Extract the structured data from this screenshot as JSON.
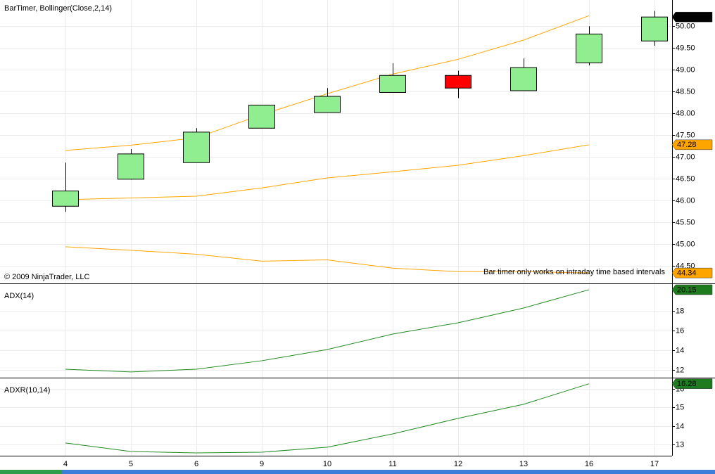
{
  "chart_data": [
    {
      "type": "candlestick",
      "title": "BarTimer, Bollinger(Close,2,14)",
      "annotations": [
        "© 2009 NinjaTrader, LLC",
        "Bar timer only works on intraday time based intervals"
      ],
      "categories": [
        "4",
        "5",
        "6",
        "9",
        "10",
        "11",
        "12",
        "13",
        "16",
        "17"
      ],
      "open": [
        45.87,
        46.49,
        46.87,
        47.66,
        48.02,
        48.48,
        48.87,
        48.52,
        49.16,
        49.66
      ],
      "high": [
        46.87,
        47.18,
        47.66,
        48.19,
        48.58,
        49.15,
        48.98,
        49.26,
        50.0,
        50.35
      ],
      "low": [
        45.74,
        46.48,
        46.87,
        47.66,
        48.02,
        48.48,
        48.35,
        48.52,
        49.1,
        49.55
      ],
      "close": [
        46.22,
        47.07,
        47.57,
        48.19,
        48.39,
        48.87,
        48.58,
        49.05,
        49.82,
        50.21
      ],
      "up_color": "#90ee90",
      "down_color": "#ff0000",
      "series": [
        {
          "color": "#ffa500",
          "values": [
            47.15,
            47.27,
            47.44,
            47.97,
            48.45,
            48.9,
            49.24,
            49.68,
            50.24,
            null
          ],
          "label_last": false
        },
        {
          "color": "#ffa500",
          "values": [
            46.02,
            46.06,
            46.1,
            46.29,
            46.52,
            46.66,
            46.81,
            47.03,
            47.28,
            null
          ],
          "label_last": true
        },
        {
          "color": "#ffa500",
          "values": [
            44.94,
            44.86,
            44.77,
            44.61,
            44.64,
            44.45,
            44.37,
            44.37,
            44.34,
            null
          ],
          "label_last": true
        }
      ],
      "ylim": [
        44.1,
        50.6
      ],
      "yticks": [
        {
          "value": 44.5,
          "label": "44.50"
        },
        {
          "value": 45,
          "label": "45.00"
        },
        {
          "value": 45.5,
          "label": "45.50"
        },
        {
          "value": 46,
          "label": "46.00"
        },
        {
          "value": 46.5,
          "label": "46.50"
        },
        {
          "value": 47,
          "label": "47.00"
        },
        {
          "value": 47.5,
          "label": "47.50"
        },
        {
          "value": 48,
          "label": "48.00"
        },
        {
          "value": 48.5,
          "label": "48.50"
        },
        {
          "value": 49,
          "label": "49.00"
        },
        {
          "value": 49.5,
          "label": "49.50"
        },
        {
          "value": 50,
          "label": "50.00"
        }
      ],
      "grid": true
    },
    {
      "type": "line",
      "title": "ADX(14)",
      "series": [
        {
          "color": "#228b22",
          "values": [
            12.07,
            11.79,
            12.07,
            12.93,
            14.07,
            15.64,
            16.79,
            18.29,
            20.15,
            null
          ],
          "label_last": true
        }
      ],
      "ylim": [
        11.21,
        20.79
      ],
      "yticks": [
        12,
        14,
        16,
        18
      ],
      "grid": true
    },
    {
      "type": "line",
      "title": "ADXR(10,14)",
      "series": [
        {
          "color": "#228b22",
          "values": [
            13.08,
            12.62,
            12.54,
            12.58,
            12.85,
            13.57,
            14.41,
            15.17,
            16.28,
            null
          ],
          "label_last": true
        }
      ],
      "ylim": [
        12.39,
        16.61
      ],
      "yticks": [
        13,
        14,
        15,
        16
      ],
      "grid": true
    }
  ]
}
